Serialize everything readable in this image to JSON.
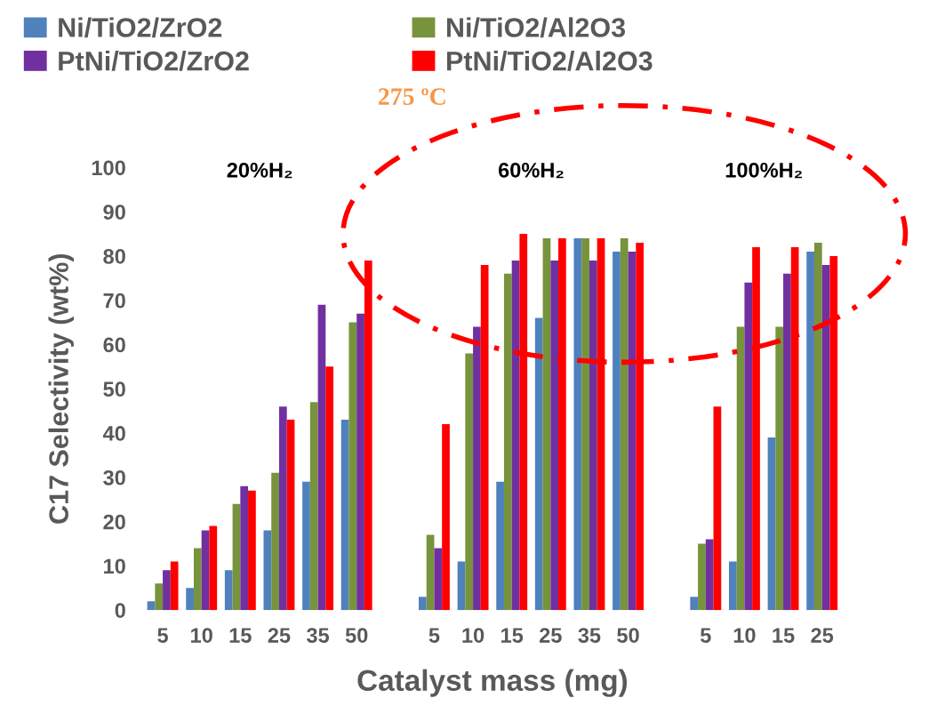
{
  "chart_data": {
    "type": "bar",
    "title": "275 ºC",
    "xlabel": "Catalyst mass (mg)",
    "ylabel": "C17 Selectivity (wt%)",
    "categories": [
      "5",
      "10",
      "15",
      "25",
      "35",
      "50",
      null,
      "5",
      "10",
      "15",
      "25",
      "35",
      "50",
      null,
      "5",
      "10",
      "15",
      "25"
    ],
    "series": [
      {
        "name": "Ni/TiO2/ZrO2",
        "color": "#4f81bd",
        "values": [
          2,
          5,
          9,
          18,
          29,
          43,
          null,
          3,
          11,
          29,
          66,
          84,
          81,
          null,
          3,
          11,
          39,
          81
        ]
      },
      {
        "name": "Ni/TiO2/Al2O3",
        "color": "#77933c",
        "values": [
          6,
          14,
          24,
          31,
          47,
          65,
          null,
          17,
          58,
          76,
          84,
          84,
          84,
          null,
          15,
          64,
          64,
          83
        ]
      },
      {
        "name": "PtNi/TiO2/ZrO2",
        "color": "#7030a0",
        "values": [
          9,
          18,
          28,
          46,
          69,
          67,
          null,
          14,
          64,
          79,
          79,
          79,
          81,
          null,
          16,
          74,
          76,
          78
        ]
      },
      {
        "name": "PtNi/TiO2/Al2O3",
        "color": "#ff0000",
        "values": [
          11,
          19,
          27,
          43,
          55,
          79,
          null,
          42,
          78,
          85,
          84,
          84,
          83,
          null,
          46,
          82,
          82,
          80
        ]
      }
    ],
    "annotations": [
      "20%H₂",
      "60%H₂",
      "100%H₂"
    ],
    "ylim": [
      0,
      100
    ],
    "yticks": [
      0,
      10,
      20,
      30,
      40,
      50,
      60,
      70,
      80,
      90,
      100
    ],
    "grid": false,
    "legend": "top"
  }
}
